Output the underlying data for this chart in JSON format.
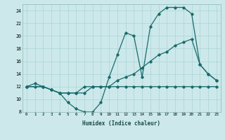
{
  "xlabel": "Humidex (Indice chaleur)",
  "bg_color": "#cce8ea",
  "grid_color": "#aad4d6",
  "line_color": "#1a6b6b",
  "xlim": [
    -0.5,
    23.5
  ],
  "ylim": [
    8,
    25
  ],
  "xticks": [
    0,
    1,
    2,
    3,
    4,
    5,
    6,
    7,
    8,
    9,
    10,
    11,
    12,
    13,
    14,
    15,
    16,
    17,
    18,
    19,
    20,
    21,
    22,
    23
  ],
  "yticks": [
    8,
    10,
    12,
    14,
    16,
    18,
    20,
    22,
    24
  ],
  "line1_x": [
    0,
    1,
    2,
    3,
    4,
    5,
    6,
    7,
    8,
    9,
    10,
    11,
    12,
    13,
    14,
    15,
    16,
    17,
    18,
    19,
    20,
    21,
    22,
    23
  ],
  "line1_y": [
    12,
    12.5,
    12,
    11.5,
    11,
    11,
    11,
    12,
    12,
    12,
    12,
    12,
    12,
    12,
    12,
    12,
    12,
    12,
    12,
    12,
    12,
    12,
    12,
    12
  ],
  "line2_x": [
    0,
    1,
    2,
    3,
    4,
    5,
    6,
    7,
    8,
    9,
    10,
    11,
    12,
    13,
    14,
    15,
    16,
    17,
    18,
    19,
    20,
    21,
    22,
    23
  ],
  "line2_y": [
    12,
    12,
    12,
    11.5,
    11,
    9.5,
    8.5,
    8,
    8,
    9.5,
    13.5,
    17,
    20.5,
    20,
    13.5,
    21.5,
    23.5,
    24.5,
    24.5,
    24.5,
    23.5,
    15.5,
    14,
    13
  ],
  "line3_x": [
    0,
    2,
    3,
    4,
    5,
    6,
    7,
    8,
    9,
    10,
    11,
    12,
    13,
    14,
    15,
    16,
    17,
    18,
    19,
    20,
    21,
    22,
    23
  ],
  "line3_y": [
    12,
    12,
    11.5,
    11,
    11,
    11,
    11,
    12,
    12,
    12,
    13,
    13.5,
    14,
    15,
    16,
    17,
    17.5,
    18.5,
    19,
    19.5,
    15.5,
    14,
    13
  ]
}
